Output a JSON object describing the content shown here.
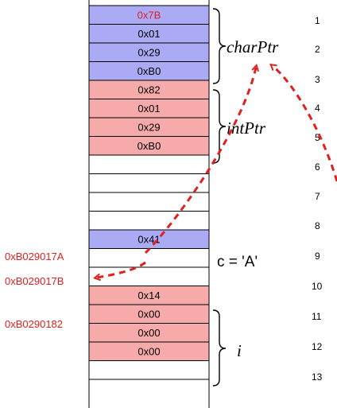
{
  "memory": {
    "cells": [
      {
        "text": "0x7B",
        "fill": "#aaaaf5",
        "text_color": "#e02020"
      },
      {
        "text": "0x01",
        "fill": "#aaaaf5",
        "text_color": "#000000"
      },
      {
        "text": "0x29",
        "fill": "#aaaaf5",
        "text_color": "#000000"
      },
      {
        "text": "0xB0",
        "fill": "#aaaaf5",
        "text_color": "#000000"
      },
      {
        "text": "0x82",
        "fill": "#f7aaaa",
        "text_color": "#000000"
      },
      {
        "text": "0x01",
        "fill": "#f7aaaa",
        "text_color": "#000000"
      },
      {
        "text": "0x29",
        "fill": "#f7aaaa",
        "text_color": "#000000"
      },
      {
        "text": "0xB0",
        "fill": "#f7aaaa",
        "text_color": "#000000"
      },
      {
        "text": "",
        "fill": "#ffffff",
        "text_color": "#000000"
      },
      {
        "text": "",
        "fill": "#ffffff",
        "text_color": "#000000"
      },
      {
        "text": "",
        "fill": "#ffffff",
        "text_color": "#000000"
      },
      {
        "text": "",
        "fill": "#ffffff",
        "text_color": "#000000"
      },
      {
        "text": "0x41",
        "fill": "#aaaaf5",
        "text_color": "#000000"
      },
      {
        "text": "",
        "fill": "#ffffff",
        "text_color": "#000000"
      },
      {
        "text": "",
        "fill": "#ffffff",
        "text_color": "#000000"
      },
      {
        "text": "0x14",
        "fill": "#f7aaaa",
        "text_color": "#000000"
      },
      {
        "text": "0x00",
        "fill": "#f7aaaa",
        "text_color": "#000000"
      },
      {
        "text": "0x00",
        "fill": "#f7aaaa",
        "text_color": "#000000"
      },
      {
        "text": "0x00",
        "fill": "#f7aaaa",
        "text_color": "#000000"
      },
      {
        "text": "",
        "fill": "#ffffff",
        "text_color": "#000000"
      }
    ]
  },
  "labels": {
    "charPtr": "charPtr",
    "intPtr": "intPtr",
    "c_assign": "c = 'A'",
    "i_var": "i"
  },
  "addresses": {
    "addr_a": "0xB029017A",
    "addr_b": "0xB029017B",
    "addr_c": "0xB0290182"
  },
  "line_numbers": [
    "1",
    "2",
    "3",
    "4",
    "5",
    "6",
    "7",
    "8",
    "9",
    "10",
    "11",
    "12",
    "13"
  ],
  "colors": {
    "pointer_cell": "#aaaaf5",
    "int_cell": "#f7aaaa",
    "annotation_red": "#e02020"
  }
}
